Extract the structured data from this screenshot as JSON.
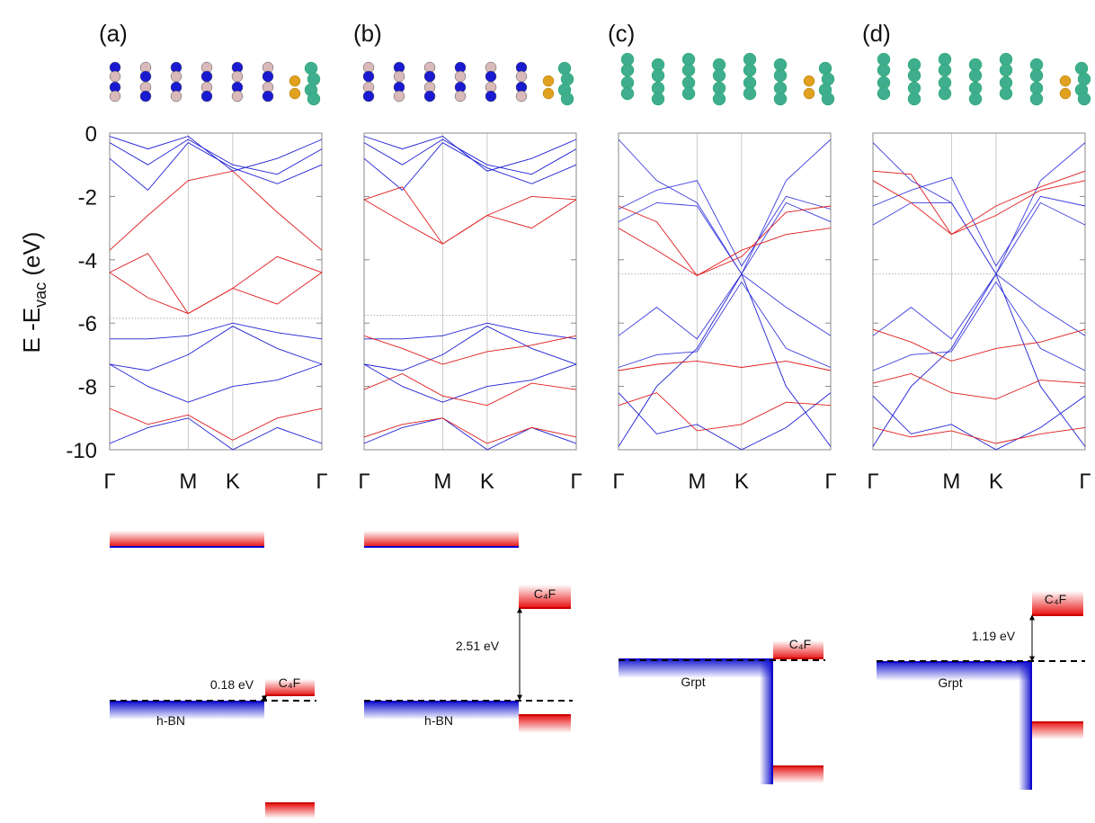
{
  "ylabel": {
    "text": "E -E",
    "subscript": "vac",
    "suffix": " (eV)"
  },
  "chart_data": [
    {
      "type": "line",
      "label": "(a)",
      "xlim": [
        0,
        1
      ],
      "ylim": [
        -10,
        0
      ],
      "yticks": [
        0,
        -2,
        -4,
        -6,
        -8,
        -10
      ],
      "xticks": [
        {
          "value": 0,
          "label": "Γ"
        },
        {
          "value": 0.37,
          "label": "M"
        },
        {
          "value": 0.58,
          "label": "K"
        },
        {
          "value": 1,
          "label": "Γ"
        }
      ],
      "x": [
        0,
        0.18,
        0.37,
        0.58,
        0.79,
        1
      ],
      "fermi_level": -5.85,
      "series": [
        {
          "color": "#1f1fd6",
          "values": [
            -0.1,
            -0.5,
            -0.1,
            -1.2,
            -0.8,
            -0.2
          ]
        },
        {
          "color": "#1f1fd6",
          "values": [
            -0.3,
            -1.0,
            -0.2,
            -1.0,
            -1.3,
            -0.5
          ]
        },
        {
          "color": "#1f1fd6",
          "values": [
            -0.8,
            -1.8,
            -0.3,
            -1.1,
            -1.6,
            -1.0
          ]
        },
        {
          "color": "#1f1fd6",
          "values": [
            -6.5,
            -6.5,
            -6.4,
            -6.0,
            -6.3,
            -6.5
          ]
        },
        {
          "color": "#1f1fd6",
          "values": [
            -7.3,
            -7.5,
            -7.0,
            -6.1,
            -6.8,
            -7.3
          ]
        },
        {
          "color": "#1f1fd6",
          "values": [
            -7.3,
            -8.0,
            -8.5,
            -8.0,
            -7.8,
            -7.3
          ]
        },
        {
          "color": "#1f1fd6",
          "values": [
            -9.8,
            -9.3,
            -9.0,
            -10.0,
            -9.3,
            -9.8
          ]
        },
        {
          "color": "#e01b1b",
          "values": [
            -4.4,
            -3.8,
            -5.7,
            -4.9,
            -3.9,
            -4.4
          ]
        },
        {
          "color": "#e01b1b",
          "values": [
            -4.4,
            -5.2,
            -5.7,
            -4.9,
            -5.4,
            -4.4
          ]
        },
        {
          "color": "#e01b1b",
          "values": [
            -3.7,
            -2.6,
            -1.5,
            -1.2,
            -2.5,
            -3.7
          ]
        },
        {
          "color": "#e01b1b",
          "values": [
            -8.7,
            -9.2,
            -8.9,
            -9.7,
            -9.0,
            -8.7
          ]
        }
      ]
    },
    {
      "type": "line",
      "label": "(b)",
      "xlim": [
        0,
        1
      ],
      "ylim": [
        -10,
        0
      ],
      "yticks": [
        0,
        -2,
        -4,
        -6,
        -8,
        -10
      ],
      "xticks": [
        {
          "value": 0,
          "label": "Γ"
        },
        {
          "value": 0.37,
          "label": "M"
        },
        {
          "value": 0.58,
          "label": "K"
        },
        {
          "value": 1,
          "label": "Γ"
        }
      ],
      "x": [
        0,
        0.18,
        0.37,
        0.58,
        0.79,
        1
      ],
      "fermi_level": -5.75,
      "series": [
        {
          "color": "#1f1fd6",
          "values": [
            -0.1,
            -0.5,
            -0.1,
            -1.2,
            -0.8,
            -0.2
          ]
        },
        {
          "color": "#1f1fd6",
          "values": [
            -0.3,
            -1.0,
            -0.2,
            -1.0,
            -1.3,
            -0.5
          ]
        },
        {
          "color": "#1f1fd6",
          "values": [
            -0.8,
            -1.8,
            -0.3,
            -1.1,
            -1.6,
            -1.0
          ]
        },
        {
          "color": "#1f1fd6",
          "values": [
            -6.5,
            -6.5,
            -6.4,
            -6.0,
            -6.3,
            -6.5
          ]
        },
        {
          "color": "#1f1fd6",
          "values": [
            -7.3,
            -7.5,
            -7.0,
            -6.1,
            -6.8,
            -7.3
          ]
        },
        {
          "color": "#1f1fd6",
          "values": [
            -7.3,
            -8.0,
            -8.5,
            -8.0,
            -7.8,
            -7.3
          ]
        },
        {
          "color": "#1f1fd6",
          "values": [
            -9.8,
            -9.3,
            -9.0,
            -10.0,
            -9.3,
            -9.8
          ]
        },
        {
          "color": "#e01b1b",
          "values": [
            -2.1,
            -1.7,
            -3.5,
            -2.6,
            -2.0,
            -2.1
          ]
        },
        {
          "color": "#e01b1b",
          "values": [
            -2.1,
            -2.8,
            -3.5,
            -2.6,
            -3.0,
            -2.1
          ]
        },
        {
          "color": "#e01b1b",
          "values": [
            -6.4,
            -6.8,
            -7.3,
            -6.9,
            -6.7,
            -6.4
          ]
        },
        {
          "color": "#e01b1b",
          "values": [
            -8.1,
            -7.6,
            -8.3,
            -8.6,
            -7.9,
            -8.1
          ]
        },
        {
          "color": "#e01b1b",
          "values": [
            -9.6,
            -9.2,
            -9.0,
            -9.8,
            -9.3,
            -9.6
          ]
        }
      ]
    },
    {
      "type": "line",
      "label": "(c)",
      "xlim": [
        0,
        1
      ],
      "ylim": [
        -10,
        0
      ],
      "yticks": [
        0,
        -2,
        -4,
        -6,
        -8,
        -10
      ],
      "xticks": [
        {
          "value": 0,
          "label": "Γ"
        },
        {
          "value": 0.37,
          "label": "M"
        },
        {
          "value": 0.58,
          "label": "K"
        },
        {
          "value": 1,
          "label": "Γ"
        }
      ],
      "x": [
        0,
        0.18,
        0.37,
        0.58,
        0.79,
        1
      ],
      "fermi_level": -4.45,
      "series": [
        {
          "color": "#3b3be0",
          "values": [
            -0.2,
            -1.5,
            -2.2,
            -4.45,
            -1.5,
            -0.2
          ]
        },
        {
          "color": "#3b3be0",
          "values": [
            -2.4,
            -1.8,
            -1.5,
            -4.2,
            -2.0,
            -2.4
          ]
        },
        {
          "color": "#3b3be0",
          "values": [
            -2.8,
            -2.2,
            -2.3,
            -4.45,
            -2.2,
            -2.8
          ]
        },
        {
          "color": "#3b3be0",
          "values": [
            -6.4,
            -5.5,
            -6.5,
            -4.45,
            -5.5,
            -6.4
          ]
        },
        {
          "color": "#3b3be0",
          "values": [
            -7.4,
            -7.0,
            -6.9,
            -4.7,
            -6.8,
            -7.4
          ]
        },
        {
          "color": "#1f1fd6",
          "values": [
            -9.9,
            -8.0,
            -6.8,
            -4.45,
            -8.0,
            -9.9
          ]
        },
        {
          "color": "#1f1fd6",
          "values": [
            -8.2,
            -9.5,
            -9.2,
            -10.0,
            -9.3,
            -8.2
          ]
        },
        {
          "color": "#e01b1b",
          "values": [
            -3.0,
            -3.7,
            -4.5,
            -3.7,
            -3.2,
            -3.0
          ]
        },
        {
          "color": "#e01b1b",
          "values": [
            -2.3,
            -2.8,
            -4.5,
            -3.9,
            -2.5,
            -2.3
          ]
        },
        {
          "color": "#e01b1b",
          "values": [
            -7.5,
            -7.3,
            -7.2,
            -7.4,
            -7.2,
            -7.5
          ]
        },
        {
          "color": "#e01b1b",
          "values": [
            -8.6,
            -8.2,
            -9.4,
            -9.2,
            -8.5,
            -8.6
          ]
        }
      ]
    },
    {
      "type": "line",
      "label": "(d)",
      "xlim": [
        0,
        1
      ],
      "ylim": [
        -10,
        0
      ],
      "yticks": [
        0,
        -2,
        -4,
        -6,
        -8,
        -10
      ],
      "xticks": [
        {
          "value": 0,
          "label": "Γ"
        },
        {
          "value": 0.37,
          "label": "M"
        },
        {
          "value": 0.58,
          "label": "K"
        },
        {
          "value": 1,
          "label": "Γ"
        }
      ],
      "x": [
        0,
        0.18,
        0.37,
        0.58,
        0.79,
        1
      ],
      "fermi_level": -4.45,
      "series": [
        {
          "color": "#3b3be0",
          "values": [
            -0.3,
            -1.5,
            -2.2,
            -4.45,
            -1.5,
            -0.3
          ]
        },
        {
          "color": "#3b3be0",
          "values": [
            -2.3,
            -1.8,
            -1.4,
            -4.2,
            -2.0,
            -2.3
          ]
        },
        {
          "color": "#3b3be0",
          "values": [
            -2.9,
            -2.2,
            -2.2,
            -4.45,
            -2.2,
            -2.9
          ]
        },
        {
          "color": "#3b3be0",
          "values": [
            -6.4,
            -5.5,
            -6.5,
            -4.45,
            -5.5,
            -6.4
          ]
        },
        {
          "color": "#3b3be0",
          "values": [
            -7.5,
            -7.0,
            -6.9,
            -4.7,
            -6.8,
            -7.5
          ]
        },
        {
          "color": "#1f1fd6",
          "values": [
            -9.9,
            -8.0,
            -6.8,
            -4.45,
            -8.0,
            -9.9
          ]
        },
        {
          "color": "#1f1fd6",
          "values": [
            -8.3,
            -9.5,
            -9.2,
            -10.0,
            -9.3,
            -8.3
          ]
        },
        {
          "color": "#e01b1b",
          "values": [
            -1.2,
            -1.3,
            -3.2,
            -2.3,
            -1.7,
            -1.2
          ]
        },
        {
          "color": "#e01b1b",
          "values": [
            -1.5,
            -2.2,
            -3.2,
            -2.6,
            -1.8,
            -1.5
          ]
        },
        {
          "color": "#e01b1b",
          "values": [
            -6.2,
            -6.6,
            -7.2,
            -6.8,
            -6.6,
            -6.2
          ]
        },
        {
          "color": "#e01b1b",
          "values": [
            -7.9,
            -7.6,
            -8.2,
            -8.4,
            -7.8,
            -7.9
          ]
        },
        {
          "color": "#e01b1b",
          "values": [
            -9.3,
            -9.6,
            -9.4,
            -9.8,
            -9.5,
            -9.3
          ]
        }
      ]
    }
  ],
  "alignment": [
    {
      "substrate": "h-BN",
      "layer": "C₄F",
      "gap": "0.18 eV"
    },
    {
      "substrate": "h-BN",
      "layer": "C₄F",
      "gap": "2.51 eV"
    },
    {
      "substrate": "Grpt",
      "layer": "C₄F"
    },
    {
      "substrate": "Grpt",
      "layer": "C₄F",
      "gap": "1.19 eV"
    }
  ]
}
